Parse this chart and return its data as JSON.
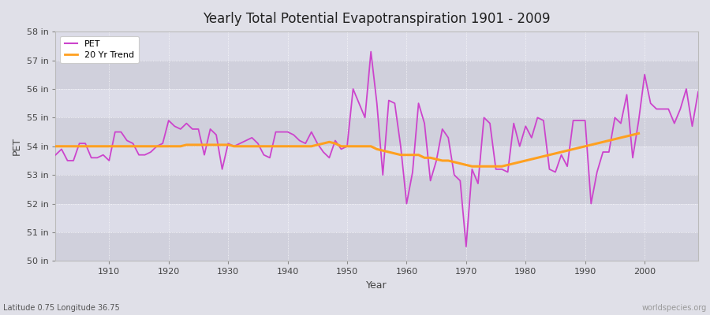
{
  "title": "Yearly Total Potential Evapotranspiration 1901 - 2009",
  "ylabel": "PET",
  "xlabel": "Year",
  "subtitle": "Latitude 0.75 Longitude 36.75",
  "watermark": "worldspecies.org",
  "pet_color": "#CC44CC",
  "trend_color": "#FFA020",
  "fig_bg_color": "#E0E0E8",
  "plot_bg_color": "#D8D8E4",
  "band_color_1": "#D0D0DC",
  "band_color_2": "#DCDCE8",
  "ylim": [
    50,
    58
  ],
  "xlim": [
    1901,
    2009
  ],
  "years": [
    1901,
    1902,
    1903,
    1904,
    1905,
    1906,
    1907,
    1908,
    1909,
    1910,
    1911,
    1912,
    1913,
    1914,
    1915,
    1916,
    1917,
    1918,
    1919,
    1920,
    1921,
    1922,
    1923,
    1924,
    1925,
    1926,
    1927,
    1928,
    1929,
    1930,
    1931,
    1932,
    1933,
    1934,
    1935,
    1936,
    1937,
    1938,
    1939,
    1940,
    1941,
    1942,
    1943,
    1944,
    1945,
    1946,
    1947,
    1948,
    1949,
    1950,
    1951,
    1952,
    1953,
    1954,
    1955,
    1956,
    1957,
    1958,
    1959,
    1960,
    1961,
    1962,
    1963,
    1964,
    1965,
    1966,
    1967,
    1968,
    1969,
    1970,
    1971,
    1972,
    1973,
    1974,
    1975,
    1976,
    1977,
    1978,
    1979,
    1980,
    1981,
    1982,
    1983,
    1984,
    1985,
    1986,
    1987,
    1988,
    1989,
    1990,
    1991,
    1992,
    1993,
    1994,
    1995,
    1996,
    1997,
    1998,
    1999,
    2000,
    2001,
    2002,
    2003,
    2004,
    2005,
    2006,
    2007,
    2008,
    2009
  ],
  "pet_values": [
    53.7,
    53.9,
    53.5,
    53.5,
    54.1,
    54.1,
    53.6,
    53.6,
    53.7,
    53.5,
    54.5,
    54.5,
    54.2,
    54.1,
    53.7,
    53.7,
    53.8,
    54.0,
    54.1,
    54.9,
    54.7,
    54.6,
    54.8,
    54.6,
    54.6,
    53.7,
    54.6,
    54.4,
    53.2,
    54.1,
    54.0,
    54.1,
    54.2,
    54.3,
    54.1,
    53.7,
    53.6,
    54.5,
    54.5,
    54.5,
    54.4,
    54.2,
    54.1,
    54.5,
    54.1,
    53.8,
    53.6,
    54.2,
    53.9,
    54.0,
    56.0,
    55.5,
    55.0,
    57.3,
    55.5,
    53.0,
    55.6,
    55.5,
    54.0,
    52.0,
    53.1,
    55.5,
    54.8,
    52.8,
    53.5,
    54.6,
    54.3,
    53.0,
    52.8,
    50.5,
    53.2,
    52.7,
    55.0,
    54.8,
    53.2,
    53.2,
    53.1,
    54.8,
    54.0,
    54.7,
    54.3,
    55.0,
    54.9,
    53.2,
    53.1,
    53.7,
    53.3,
    54.9,
    54.9,
    54.9,
    52.0,
    53.1,
    53.8,
    53.8,
    55.0,
    54.8,
    55.8,
    53.6,
    54.9,
    56.5,
    55.5,
    55.3,
    55.3,
    55.3,
    54.8,
    55.3,
    56.0,
    54.7,
    55.9
  ],
  "trend_values": [
    54.0,
    54.0,
    54.0,
    54.0,
    54.0,
    54.0,
    54.0,
    54.0,
    54.0,
    54.0,
    54.0,
    54.0,
    54.0,
    54.0,
    54.0,
    54.0,
    54.0,
    54.0,
    54.0,
    54.0,
    54.0,
    54.0,
    54.05,
    54.05,
    54.05,
    54.05,
    54.05,
    54.05,
    54.05,
    54.05,
    54.0,
    54.0,
    54.0,
    54.0,
    54.0,
    54.0,
    54.0,
    54.0,
    54.0,
    54.0,
    54.0,
    54.0,
    54.0,
    54.0,
    54.05,
    54.1,
    54.15,
    54.1,
    54.0,
    54.0,
    54.0,
    54.0,
    54.0,
    54.0,
    53.9,
    53.85,
    53.8,
    53.75,
    53.7,
    53.7,
    53.7,
    53.7,
    53.6,
    53.6,
    53.55,
    53.5,
    53.5,
    53.45,
    53.4,
    53.35,
    53.3,
    53.3,
    53.3,
    53.3,
    53.3,
    53.3,
    53.35,
    53.4,
    53.45,
    53.5,
    53.55,
    53.6,
    53.65,
    53.7,
    53.75,
    53.8,
    53.85,
    53.9,
    53.95,
    54.0,
    54.05,
    54.1,
    54.15,
    54.2,
    54.25,
    54.3,
    54.35,
    54.4,
    54.45,
    null,
    null,
    null,
    null,
    null,
    null,
    null,
    null,
    null,
    null
  ]
}
